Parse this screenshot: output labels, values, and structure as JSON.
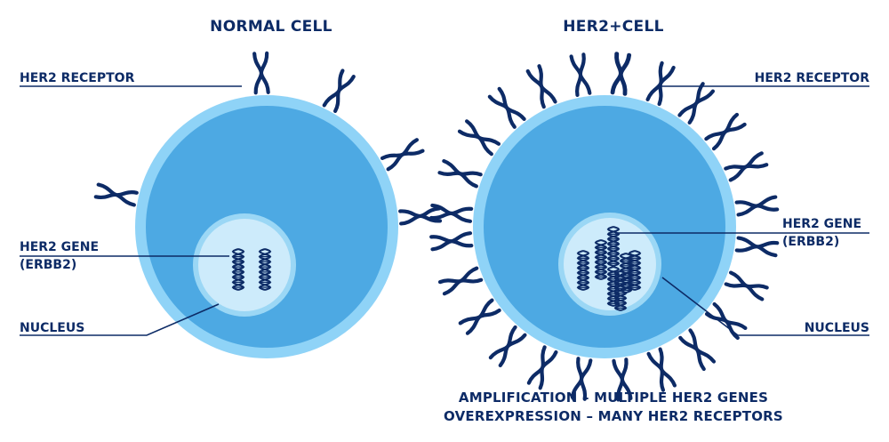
{
  "normal_cell": {
    "title": "NORMAL CELL",
    "labels": {
      "receptor": "HER2 RECEPTOR",
      "gene_line1": "HER2 GENE",
      "gene_line2": "(ERBB2)",
      "nucleus": "NUCLEUS"
    }
  },
  "her2_cell": {
    "title": "HER2+CELL",
    "labels": {
      "receptor": "HER2 RECEPTOR",
      "gene_line1": "HER2 GENE",
      "gene_line2": "(ERBB2)",
      "nucleus": "NUCLEUS"
    }
  },
  "footer": {
    "line1": "AMPLIFICATION – MULTIPLE HER2 GENES",
    "line2": "OVEREXPRESSION – MANY HER2 RECEPTORS"
  },
  "colors": {
    "membrane": "#8fd3f7",
    "cytoplasm": "#4da9e3",
    "nucleus_ring": "#9bd7f5",
    "nucleus_fill": "#cdebfb",
    "ink": "#0d2b66"
  },
  "icons": {
    "receptor": "y-shaped-receptor-icon",
    "gene": "dna-double-helix-icon"
  }
}
